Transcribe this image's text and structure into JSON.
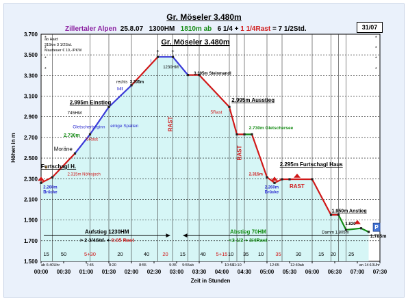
{
  "chart_data": {
    "type": "line",
    "title": "Gr. Möseler 3.480m",
    "plot_title": "Gr. Möseler  3.480m",
    "subtitle": [
      {
        "text": "Zillertaler Alpen",
        "color": "#8a1ea0"
      },
      {
        "text": "25.8.07",
        "color": "#000000"
      },
      {
        "text": "1300HM",
        "color": "#000000"
      },
      {
        "text": "1810m ab",
        "color": "#138a13"
      },
      {
        "text": "6 1/4 +",
        "color": "#000000"
      },
      {
        "text": "1 1/4Rast",
        "color": "#d01818"
      },
      {
        "text": "= 7 1/2Std.",
        "color": "#000000"
      }
    ],
    "badge": "31/07",
    "xlabel": "Zeit in Stunden",
    "ylabel": "Höhen in m",
    "xlim": [
      0,
      450
    ],
    "ylim": [
      1500,
      3700
    ],
    "x_ticks": [
      0,
      30,
      60,
      90,
      120,
      150,
      180,
      210,
      240,
      270,
      300,
      330,
      360,
      390,
      420,
      450
    ],
    "x_tick_labels": [
      "00:00",
      "00:30",
      "01:00",
      "01:30",
      "02:00",
      "02:30",
      "03:00",
      "03:30",
      "04:00",
      "04:30",
      "05:00",
      "05:30",
      "06:00",
      "06:30",
      "07:00",
      "07:30"
    ],
    "y_ticks": [
      1500,
      1700,
      1900,
      2100,
      2300,
      2500,
      2700,
      2900,
      3100,
      3300,
      3500,
      3700
    ],
    "y_tick_labels": [
      "1.500",
      "1.700",
      "1.900",
      "2.100",
      "2.300",
      "2.500",
      "2.700",
      "2.900",
      "3.100",
      "3.300",
      "3.500",
      "3.700"
    ],
    "grid": true,
    "series": [
      {
        "color": "#d01818",
        "x": [
          0,
          15,
          45,
          65,
          90,
          120,
          155,
          175,
          195,
          210,
          250,
          260,
          270,
          280,
          300,
          310,
          320,
          330,
          360,
          385,
          395,
          405,
          425,
          435
        ],
        "y": [
          2260,
          2315,
          2545,
          2730,
          2995,
          3205,
          3480,
          3480,
          3305,
          3305,
          2995,
          2730,
          2730,
          2730,
          2315,
          2260,
          2295,
          2295,
          2295,
          1950,
          1950,
          1805,
          1820,
          1785
        ]
      }
    ],
    "segment_colors": [
      "#d01818",
      "#d01818",
      "#3b3bd8",
      "#3b3bd8",
      "#3b3bd8",
      "#d01818",
      "#3b3bd8",
      "#3b3bd8",
      "#d01818",
      "#d01818",
      "#d01818",
      "#d01818",
      "#138a13",
      "#d01818",
      "#d01818",
      "#d01818",
      "#d01818",
      "#d01818",
      "#d01818",
      "#d01818",
      "#138a13",
      "#138a13",
      "#138a13"
    ],
    "fill_color": "#d6f6f6",
    "info_lines": [
      "ab Haid:",
      "315km 3 1/2Std.",
      "Mautteuer € 10,-/PKW"
    ],
    "annotations": [
      {
        "text": "Furtschagl H.",
        "x": 0,
        "y": 2400,
        "color": "#000000",
        "bold": true,
        "underline": true,
        "size": 8
      },
      {
        "text": "2.260m",
        "x": 3,
        "y": 2205,
        "color": "#2a2ad0",
        "bold": true,
        "size": 6
      },
      {
        "text": "Brücke",
        "x": 3,
        "y": 2160,
        "color": "#2a2ad0",
        "bold": true,
        "size": 6
      },
      {
        "text": "2.315m Nöfesjoch",
        "x": 35,
        "y": 2330,
        "color": "#d01818",
        "size": 6
      },
      {
        "text": "Moräne",
        "x": 17,
        "y": 2570,
        "color": "#000000",
        "size": 8
      },
      {
        "text": "Gletscherbeginn",
        "x": 42,
        "y": 2790,
        "color": "#2a2ad0",
        "size": 6.5
      },
      {
        "text": "2.730m",
        "x": 30,
        "y": 2705,
        "color": "#138a13",
        "bold": true,
        "size": 7
      },
      {
        "text": "5Rast",
        "x": 60,
        "y": 2670,
        "color": "#d01818",
        "size": 6.5
      },
      {
        "text": "2.995m Einstieg",
        "x": 38,
        "y": 3020,
        "color": "#000000",
        "bold": true,
        "underline": true,
        "size": 8
      },
      {
        "text": "745HM",
        "x": 35,
        "y": 2925,
        "color": "#000000",
        "size": 6.5
      },
      {
        "text": "einige Spalten",
        "x": 92,
        "y": 2800,
        "color": "#2a2ad0",
        "size": 6.5
      },
      {
        "text": "rechts",
        "x": 100,
        "y": 3225,
        "color": "#000000",
        "size": 6
      },
      {
        "text": "3.205m",
        "x": 118,
        "y": 3225,
        "color": "#000000",
        "bold": true,
        "size": 6
      },
      {
        "text": "I-II",
        "x": 101,
        "y": 3155,
        "color": "#2a2ad0",
        "bold": true,
        "size": 7
      },
      {
        "text": "I",
        "x": 145,
        "y": 3425,
        "color": "#2a2ad0",
        "size": 7
      },
      {
        "text": "1230HM",
        "x": 162,
        "y": 3370,
        "color": "#000000",
        "size": 6
      },
      {
        "text": "3.305m Steinmandl",
        "x": 203,
        "y": 3310,
        "color": "#000000",
        "bold": true,
        "size": 6
      },
      {
        "text": "2.995m Ausstieg",
        "x": 253,
        "y": 3045,
        "color": "#000000",
        "bold": true,
        "underline": true,
        "size": 8
      },
      {
        "text": "5Rast",
        "x": 225,
        "y": 2930,
        "color": "#d01818",
        "size": 6.5
      },
      {
        "text": "2.730m Gletschersee",
        "x": 276,
        "y": 2780,
        "color": "#138a13",
        "bold": true,
        "size": 6.5
      },
      {
        "text": "2.315m",
        "x": 276,
        "y": 2330,
        "color": "#d01818",
        "bold": true,
        "size": 6
      },
      {
        "text": "2.260m",
        "x": 297,
        "y": 2205,
        "color": "#2a2ad0",
        "bold": true,
        "size": 6
      },
      {
        "text": "Brücke",
        "x": 297,
        "y": 2160,
        "color": "#2a2ad0",
        "bold": true,
        "size": 6
      },
      {
        "text": "2.295m Furtschagl  Haus",
        "x": 317,
        "y": 2420,
        "color": "#000000",
        "bold": true,
        "underline": true,
        "size": 8
      },
      {
        "text": "RAST",
        "x": 330,
        "y": 2210,
        "color": "#d01818",
        "bold": true,
        "size": 8
      },
      {
        "text": "1.950m Anstieg",
        "x": 386,
        "y": 1975,
        "color": "#000000",
        "bold": true,
        "underline": true,
        "size": 7
      },
      {
        "text": "1.820",
        "x": 404,
        "y": 1850,
        "color": "#000000",
        "bold": true,
        "size": 6
      },
      {
        "text": "Damm 1.805m",
        "x": 373,
        "y": 1770,
        "color": "#000000",
        "size": 6
      },
      {
        "text": "1.785m",
        "x": 437,
        "y": 1730,
        "color": "#000000",
        "bold": true,
        "size": 7
      },
      {
        "text": "P",
        "x": 443,
        "y": 1820,
        "color": "#000000",
        "bold": true,
        "size": 8
      }
    ],
    "rast_labels": [
      {
        "text": "RAST",
        "x": 174,
        "y": 2830
      },
      {
        "text": "RAST",
        "x": 266,
        "y": 2550
      }
    ],
    "aufstieg": {
      "line1": "Aufstieg 1230HM",
      "line1_color": "#000000",
      "line2_a": "> 2 3/4Std. + ",
      "line2_b": "0:05 Rast",
      "x_start": 0,
      "x_end": 175,
      "y": 1750
    },
    "abstieg": {
      "line1": "Abstieg 70HM",
      "line2": "<3 1/2 + 3/4Rast",
      "color": "#138a13",
      "x_start": 185,
      "x_end": 450,
      "y": 1750
    },
    "segments": [
      {
        "label": "15",
        "x": 7,
        "red": false
      },
      {
        "label": "50",
        "x": 30,
        "red": false
      },
      {
        "label": "5+30",
        "x": 65,
        "red": true
      },
      {
        "label": "20",
        "x": 105,
        "red": false
      },
      {
        "label": "40",
        "x": 140,
        "red": false
      },
      {
        "label": "20",
        "x": 165,
        "red": true
      },
      {
        "label": "15",
        "x": 188,
        "red": false
      },
      {
        "label": "40",
        "x": 215,
        "red": false
      },
      {
        "label": "5+15",
        "x": 240,
        "red": true
      },
      {
        "label": "10",
        "x": 252,
        "red": false
      },
      {
        "label": "35",
        "x": 272,
        "red": false
      },
      {
        "label": "10",
        "x": 292,
        "red": false
      },
      {
        "label": "35",
        "x": 315,
        "red": true
      },
      {
        "label": "30",
        "x": 342,
        "red": false
      },
      {
        "label": "15",
        "x": 372,
        "red": false
      },
      {
        "label": "20",
        "x": 388,
        "red": false
      },
      {
        "label": "25",
        "x": 412,
        "red": false
      }
    ],
    "time_marks": [
      {
        "text": "ab 6:40Uhr",
        "x": 0
      },
      {
        "text": "7:45",
        "x": 65
      },
      {
        "text": "8:20",
        "x": 95
      },
      {
        "text": "8:55",
        "x": 135
      },
      {
        "text": "9:35",
        "x": 175
      },
      {
        "text": "9:55ab",
        "x": 195
      },
      {
        "text": "10:50",
        "x": 250
      },
      {
        "text": "11:10",
        "x": 260
      },
      {
        "text": "12:05",
        "x": 310
      },
      {
        "text": "12:40ab",
        "x": 340
      },
      {
        "text": "an 14:10Uhr",
        "x": 435
      }
    ],
    "vlines": [
      15,
      65,
      90,
      120,
      155,
      175,
      195,
      210,
      250,
      260,
      270,
      300,
      320,
      360,
      385,
      395,
      405
    ],
    "star_x": [
      0,
      450
    ],
    "star_y": [
      3650,
      3550,
      3450,
      3350
    ]
  }
}
